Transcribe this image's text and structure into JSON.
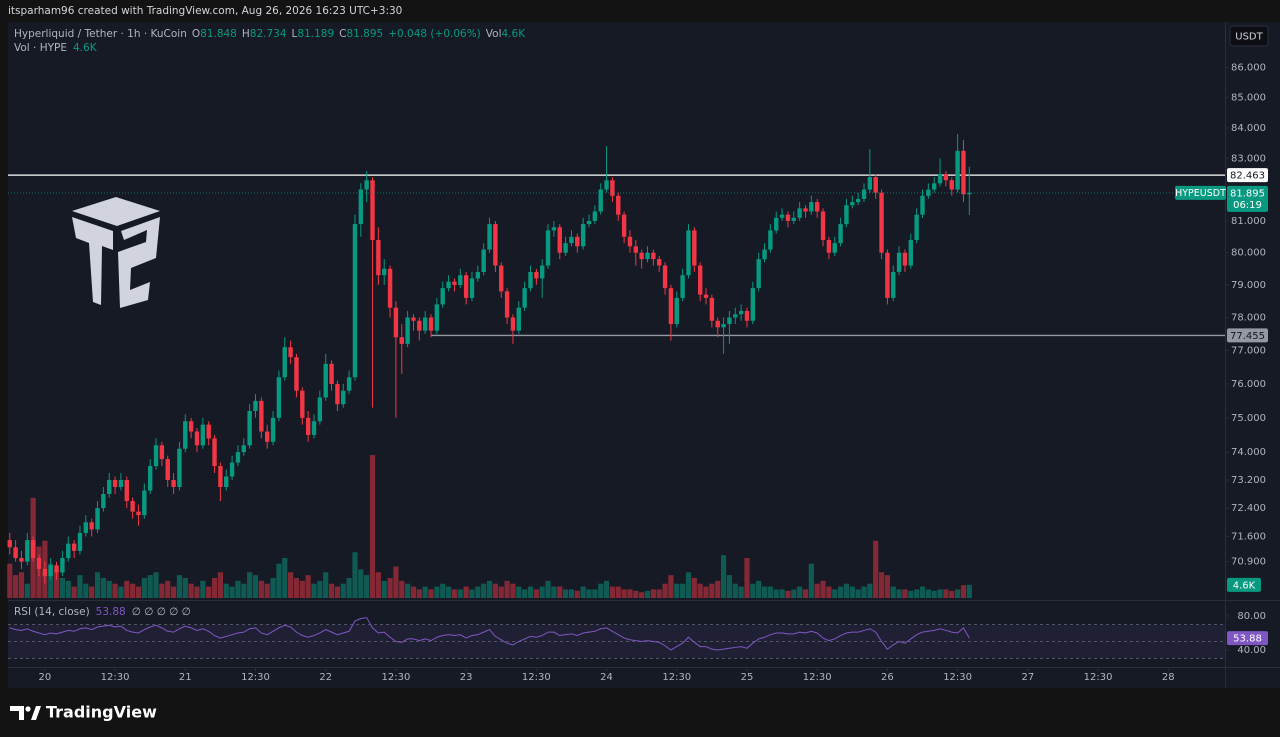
{
  "header": {
    "credit": "itsparham96 created with TradingView.com, Aug 26, 2026 16:23 UTC+3:30"
  },
  "chart_data": {
    "type": "candlestick",
    "title": "Hyperliquid / Tether · 1h · KuCoin",
    "legend_fields": [
      "O",
      "H",
      "L",
      "C"
    ],
    "change": "+0.048 (+0.06%)",
    "volume_prefix": "Vol",
    "volume_title": "Vol · HYPE",
    "currency": "USDT",
    "ylog": true,
    "grid": false,
    "up_color": "#089981",
    "down_color": "#f23645",
    "ylim": [
      69.9,
      87.55
    ],
    "yticks": [
      {
        "value": 86,
        "label": "86.000"
      },
      {
        "value": 85,
        "label": "85.000"
      },
      {
        "value": 84,
        "label": "84.000"
      },
      {
        "value": 83,
        "label": "83.000"
      },
      {
        "value": 81,
        "label": "81.000"
      },
      {
        "value": 80,
        "label": "80.000"
      },
      {
        "value": 79,
        "label": "79.000"
      },
      {
        "value": 78,
        "label": "78.000"
      },
      {
        "value": 77,
        "label": "77.000"
      },
      {
        "value": 76,
        "label": "76.000"
      },
      {
        "value": 75,
        "label": "75.000"
      },
      {
        "value": 74,
        "label": "74.000"
      },
      {
        "value": 73.2,
        "label": "73.200"
      },
      {
        "value": 72.4,
        "label": "72.400"
      },
      {
        "value": 71.6,
        "label": "71.600"
      },
      {
        "value": 70.9,
        "label": "70.900"
      }
    ],
    "xlim": [
      -0.3,
      207.7
    ],
    "xticks": [
      {
        "value": 6,
        "label": "20"
      },
      {
        "value": 18,
        "label": "12:30"
      },
      {
        "value": 30,
        "label": "21"
      },
      {
        "value": 42,
        "label": "12:30"
      },
      {
        "value": 54,
        "label": "22"
      },
      {
        "value": 66,
        "label": "12:30"
      },
      {
        "value": 78,
        "label": "23"
      },
      {
        "value": 90,
        "label": "12:30"
      },
      {
        "value": 102,
        "label": "24"
      },
      {
        "value": 114,
        "label": "12:30"
      },
      {
        "value": 126,
        "label": "25"
      },
      {
        "value": 138,
        "label": "12:30"
      },
      {
        "value": 150,
        "label": "26"
      },
      {
        "value": 162,
        "label": "12:30"
      },
      {
        "value": 174,
        "label": "27"
      },
      {
        "value": 186,
        "label": "12:30"
      },
      {
        "value": 198,
        "label": "28"
      }
    ],
    "ohlc": [
      [
        71.5,
        71.7,
        71.1,
        71.3
      ],
      [
        71.3,
        71.5,
        70.9,
        71.0
      ],
      [
        71.0,
        71.2,
        70.7,
        70.9
      ],
      [
        70.9,
        71.7,
        70.8,
        71.5
      ],
      [
        71.5,
        71.6,
        70.9,
        71.0
      ],
      [
        71.0,
        71.1,
        70.5,
        70.7
      ],
      [
        70.7,
        70.9,
        70.3,
        70.5
      ],
      [
        70.5,
        71.0,
        70.4,
        70.8
      ],
      [
        70.8,
        70.9,
        70.4,
        70.6
      ],
      [
        70.6,
        71.2,
        70.5,
        71.0
      ],
      [
        71.0,
        71.6,
        70.9,
        71.4
      ],
      [
        71.4,
        71.5,
        71.0,
        71.2
      ],
      [
        71.2,
        71.9,
        71.1,
        71.7
      ],
      [
        71.7,
        72.2,
        71.6,
        72.0
      ],
      [
        72.0,
        72.1,
        71.6,
        71.8
      ],
      [
        71.8,
        72.6,
        71.7,
        72.4
      ],
      [
        72.4,
        73.0,
        72.3,
        72.8
      ],
      [
        72.8,
        73.4,
        72.7,
        73.2
      ],
      [
        73.2,
        73.3,
        72.8,
        73.0
      ],
      [
        73.0,
        73.4,
        72.9,
        73.2
      ],
      [
        73.2,
        73.3,
        72.4,
        72.6
      ],
      [
        72.6,
        72.7,
        72.1,
        72.3
      ],
      [
        72.3,
        72.5,
        71.9,
        72.2
      ],
      [
        72.2,
        73.1,
        72.1,
        72.9
      ],
      [
        72.9,
        73.8,
        72.8,
        73.6
      ],
      [
        73.6,
        74.4,
        73.5,
        74.2
      ],
      [
        74.2,
        74.3,
        73.6,
        73.8
      ],
      [
        73.8,
        73.9,
        73.0,
        73.2
      ],
      [
        73.2,
        73.4,
        72.8,
        73.0
      ],
      [
        73.0,
        74.3,
        72.9,
        74.1
      ],
      [
        74.1,
        75.1,
        74.0,
        74.9
      ],
      [
        74.9,
        75.0,
        74.4,
        74.6
      ],
      [
        74.6,
        74.7,
        74.0,
        74.2
      ],
      [
        74.2,
        75.0,
        74.1,
        74.8
      ],
      [
        74.8,
        74.9,
        74.2,
        74.4
      ],
      [
        74.4,
        74.5,
        73.4,
        73.6
      ],
      [
        73.6,
        73.7,
        72.6,
        73.0
      ],
      [
        73.0,
        73.5,
        72.9,
        73.3
      ],
      [
        73.3,
        73.9,
        73.2,
        73.7
      ],
      [
        73.7,
        74.2,
        73.6,
        74.0
      ],
      [
        74.0,
        74.4,
        73.9,
        74.2
      ],
      [
        74.2,
        75.4,
        74.1,
        75.2
      ],
      [
        75.2,
        75.7,
        75.0,
        75.5
      ],
      [
        75.5,
        75.6,
        74.4,
        74.6
      ],
      [
        74.6,
        74.8,
        74.1,
        74.3
      ],
      [
        74.3,
        75.2,
        74.2,
        75.0
      ],
      [
        75.0,
        76.4,
        74.9,
        76.2
      ],
      [
        76.2,
        77.4,
        76.1,
        77.1
      ],
      [
        77.1,
        77.3,
        76.6,
        76.8
      ],
      [
        76.8,
        76.9,
        75.6,
        75.8
      ],
      [
        75.8,
        75.9,
        74.8,
        75.0
      ],
      [
        75.0,
        75.2,
        74.3,
        74.5
      ],
      [
        74.5,
        75.1,
        74.4,
        74.9
      ],
      [
        74.9,
        75.8,
        74.8,
        75.6
      ],
      [
        75.6,
        76.9,
        75.5,
        76.6
      ],
      [
        76.6,
        76.7,
        75.8,
        76.0
      ],
      [
        76.0,
        76.1,
        75.2,
        75.4
      ],
      [
        75.4,
        76.0,
        75.3,
        75.8
      ],
      [
        75.8,
        76.4,
        75.7,
        76.2
      ],
      [
        76.2,
        81.2,
        76.1,
        80.9
      ],
      [
        80.9,
        82.2,
        80.5,
        82.0
      ],
      [
        82.0,
        82.6,
        81.6,
        82.3
      ],
      [
        82.3,
        82.4,
        75.3,
        80.4
      ],
      [
        80.4,
        80.8,
        79.0,
        79.3
      ],
      [
        79.3,
        79.8,
        79.0,
        79.5
      ],
      [
        79.5,
        79.6,
        78.0,
        78.3
      ],
      [
        78.3,
        78.5,
        75.0,
        77.4
      ],
      [
        77.4,
        77.8,
        76.3,
        77.2
      ],
      [
        77.2,
        78.2,
        77.1,
        78.0
      ],
      [
        78.0,
        78.1,
        77.6,
        77.9
      ],
      [
        77.9,
        78.0,
        77.3,
        77.6
      ],
      [
        77.6,
        78.2,
        77.5,
        78.0
      ],
      [
        78.0,
        78.1,
        77.4,
        77.6
      ],
      [
        77.6,
        78.6,
        77.5,
        78.4
      ],
      [
        78.4,
        79.1,
        78.3,
        78.9
      ],
      [
        78.9,
        79.3,
        78.8,
        79.1
      ],
      [
        79.1,
        79.2,
        78.8,
        79.0
      ],
      [
        79.0,
        79.5,
        78.9,
        79.3
      ],
      [
        79.3,
        79.4,
        78.4,
        78.6
      ],
      [
        78.6,
        79.4,
        78.5,
        79.2
      ],
      [
        79.2,
        79.6,
        79.1,
        79.4
      ],
      [
        79.4,
        80.3,
        79.3,
        80.1
      ],
      [
        80.1,
        81.1,
        80.0,
        80.9
      ],
      [
        80.9,
        81.0,
        79.4,
        79.6
      ],
      [
        79.6,
        79.7,
        78.6,
        78.8
      ],
      [
        78.8,
        78.9,
        77.8,
        78.0
      ],
      [
        78.0,
        78.1,
        77.2,
        77.6
      ],
      [
        77.6,
        78.5,
        77.5,
        78.3
      ],
      [
        78.3,
        79.1,
        78.2,
        78.9
      ],
      [
        78.9,
        79.6,
        78.8,
        79.4
      ],
      [
        79.4,
        79.5,
        79.0,
        79.2
      ],
      [
        79.2,
        79.8,
        78.6,
        79.6
      ],
      [
        79.6,
        80.9,
        79.5,
        80.7
      ],
      [
        80.7,
        81.0,
        80.5,
        80.8
      ],
      [
        80.8,
        80.9,
        79.8,
        80.0
      ],
      [
        80.0,
        80.5,
        79.9,
        80.3
      ],
      [
        80.3,
        80.7,
        80.2,
        80.5
      ],
      [
        80.5,
        80.6,
        80.0,
        80.2
      ],
      [
        80.2,
        81.1,
        80.1,
        80.9
      ],
      [
        80.9,
        81.2,
        80.8,
        81.0
      ],
      [
        81.0,
        81.5,
        80.9,
        81.3
      ],
      [
        81.3,
        82.2,
        81.2,
        82.0
      ],
      [
        82.0,
        83.4,
        81.9,
        82.3
      ],
      [
        82.3,
        82.4,
        81.6,
        81.8
      ],
      [
        81.8,
        81.9,
        81.0,
        81.2
      ],
      [
        81.2,
        81.3,
        80.3,
        80.5
      ],
      [
        80.5,
        80.7,
        80.0,
        80.2
      ],
      [
        80.2,
        80.4,
        79.6,
        80.0
      ],
      [
        80.0,
        80.1,
        79.5,
        79.8
      ],
      [
        79.8,
        80.2,
        79.7,
        80.0
      ],
      [
        80.0,
        80.1,
        79.6,
        79.8
      ],
      [
        79.8,
        79.9,
        79.4,
        79.6
      ],
      [
        79.6,
        79.7,
        78.7,
        78.9
      ],
      [
        78.9,
        79.0,
        77.3,
        77.8
      ],
      [
        77.8,
        78.8,
        77.7,
        78.6
      ],
      [
        78.6,
        79.5,
        78.5,
        79.3
      ],
      [
        79.3,
        80.9,
        79.2,
        80.7
      ],
      [
        80.7,
        80.8,
        79.4,
        79.6
      ],
      [
        79.6,
        79.7,
        78.5,
        78.7
      ],
      [
        78.7,
        78.9,
        78.4,
        78.6
      ],
      [
        78.6,
        78.7,
        77.7,
        77.9
      ],
      [
        77.9,
        78.0,
        77.4,
        77.7
      ],
      [
        77.7,
        78.0,
        76.9,
        77.8
      ],
      [
        77.8,
        78.2,
        77.2,
        78.0
      ],
      [
        78.0,
        78.3,
        77.8,
        78.1
      ],
      [
        78.1,
        78.4,
        77.9,
        78.2
      ],
      [
        78.2,
        78.3,
        77.7,
        77.9
      ],
      [
        77.9,
        79.1,
        77.8,
        78.9
      ],
      [
        78.9,
        80.0,
        78.8,
        79.8
      ],
      [
        79.8,
        80.3,
        79.7,
        80.1
      ],
      [
        80.1,
        80.9,
        80.0,
        80.7
      ],
      [
        80.7,
        81.3,
        80.6,
        81.1
      ],
      [
        81.1,
        81.4,
        81.0,
        81.2
      ],
      [
        81.2,
        81.3,
        80.8,
        81.0
      ],
      [
        81.0,
        81.3,
        80.9,
        81.1
      ],
      [
        81.1,
        81.6,
        81.0,
        81.4
      ],
      [
        81.4,
        81.5,
        81.1,
        81.3
      ],
      [
        81.3,
        81.8,
        81.2,
        81.6
      ],
      [
        81.6,
        81.7,
        81.1,
        81.3
      ],
      [
        81.3,
        81.4,
        80.2,
        80.4
      ],
      [
        80.4,
        80.5,
        79.8,
        80.0
      ],
      [
        80.0,
        80.5,
        79.9,
        80.3
      ],
      [
        80.3,
        81.1,
        80.2,
        80.9
      ],
      [
        80.9,
        81.7,
        80.8,
        81.5
      ],
      [
        81.5,
        81.8,
        81.4,
        81.6
      ],
      [
        81.6,
        81.9,
        81.5,
        81.7
      ],
      [
        81.7,
        82.2,
        81.6,
        82.0
      ],
      [
        82.0,
        83.3,
        81.9,
        82.4
      ],
      [
        82.4,
        82.5,
        81.7,
        81.9
      ],
      [
        81.9,
        82.0,
        79.8,
        80.0
      ],
      [
        80.0,
        80.1,
        78.4,
        78.6
      ],
      [
        78.6,
        79.6,
        78.5,
        79.4
      ],
      [
        79.4,
        80.2,
        79.3,
        80.0
      ],
      [
        80.0,
        80.1,
        79.4,
        79.6
      ],
      [
        79.6,
        80.6,
        79.5,
        80.4
      ],
      [
        80.4,
        81.4,
        80.3,
        81.2
      ],
      [
        81.2,
        82.0,
        81.1,
        81.8
      ],
      [
        81.8,
        82.2,
        81.7,
        82.0
      ],
      [
        82.0,
        82.4,
        81.9,
        82.2
      ],
      [
        82.2,
        83.0,
        82.1,
        82.5
      ],
      [
        82.5,
        82.6,
        82.1,
        82.3
      ],
      [
        82.3,
        82.4,
        81.8,
        82.0
      ],
      [
        82.0,
        83.8,
        81.9,
        83.25
      ],
      [
        83.25,
        83.6,
        81.6,
        81.848
      ],
      [
        81.848,
        82.734,
        81.189,
        81.895
      ]
    ],
    "volumes": [
      12000,
      8000,
      9000,
      5000,
      35000,
      18000,
      20000,
      12000,
      10000,
      7000,
      6000,
      4000,
      8000,
      5000,
      4000,
      9000,
      7000,
      6000,
      5000,
      4000,
      6000,
      5000,
      4000,
      7000,
      8000,
      9000,
      5000,
      6000,
      4000,
      8000,
      7000,
      5000,
      4000,
      6000,
      4000,
      7000,
      9000,
      5000,
      4000,
      6000,
      5000,
      9000,
      8000,
      6000,
      5000,
      7000,
      12000,
      14000,
      9000,
      7000,
      6000,
      8000,
      5000,
      6000,
      9000,
      5000,
      4000,
      5000,
      7000,
      16000,
      10000,
      8000,
      50000,
      9000,
      6000,
      7000,
      11000,
      6000,
      5000,
      4000,
      3000,
      4000,
      3000,
      4000,
      5000,
      4000,
      3000,
      3000,
      4000,
      3000,
      4000,
      5000,
      6000,
      5000,
      4000,
      6000,
      5000,
      4000,
      3000,
      4000,
      3000,
      4000,
      6000,
      4000,
      4000,
      3000,
      3000,
      2500,
      4000,
      3000,
      3000,
      5000,
      6000,
      4000,
      4000,
      3000,
      3000,
      2500,
      2000,
      2500,
      3000,
      3000,
      5000,
      8000,
      5000,
      5000,
      9000,
      7000,
      5000,
      4000,
      5000,
      6000,
      15000,
      8000,
      5000,
      4000,
      14000,
      5000,
      6000,
      4000,
      4000,
      3000,
      3000,
      2500,
      3000,
      4000,
      3000,
      12000,
      5000,
      6000,
      4000,
      3000,
      4000,
      5000,
      4000,
      3000,
      4000,
      5000,
      20000,
      9000,
      8000,
      4000,
      3000,
      3000,
      2500,
      3000,
      4000,
      3000,
      2500,
      3000,
      3000,
      2500,
      3000,
      4500,
      4600
    ],
    "volume_label": {
      "value": 4600,
      "label": "4.6K"
    },
    "hlines": [
      {
        "value": 82.463,
        "label": "82.463",
        "color": "#ffffff",
        "from": -0.3
      },
      {
        "value": 77.455,
        "label": "77.455",
        "color": "#9598a1",
        "from": 72
      }
    ],
    "last_price": {
      "symbol": "HYPEUSDT",
      "countdown": "06:19"
    },
    "rsi": {
      "title": "RSI (14, close)",
      "extras": "∅ ∅ ∅ ∅ ∅",
      "color": "#7e57c2",
      "ylim": [
        20,
        97.6
      ],
      "yticks": [
        {
          "value": 80,
          "label": "80.00"
        },
        {
          "value": 40,
          "label": "40.00"
        }
      ],
      "levels": [
        70,
        50,
        30
      ],
      "values": [
        66,
        64,
        63,
        65,
        62,
        60,
        58,
        60,
        59,
        61,
        63,
        62,
        65,
        66,
        64,
        67,
        68,
        69,
        67,
        68,
        63,
        61,
        60,
        64,
        67,
        69,
        66,
        62,
        61,
        65,
        68,
        66,
        63,
        65,
        62,
        57,
        54,
        56,
        58,
        60,
        61,
        65,
        66,
        60,
        58,
        62,
        66,
        69,
        67,
        61,
        57,
        55,
        57,
        60,
        64,
        61,
        58,
        60,
        62,
        74,
        77,
        78,
        66,
        60,
        61,
        55,
        50,
        49,
        53,
        53,
        51,
        53,
        51,
        55,
        57,
        58,
        57,
        58,
        54,
        57,
        58,
        61,
        64,
        56,
        52,
        48,
        46,
        50,
        53,
        56,
        55,
        57,
        61,
        61,
        57,
        58,
        59,
        57,
        60,
        61,
        62,
        65,
        66,
        62,
        58,
        54,
        52,
        51,
        50,
        51,
        50,
        49,
        45,
        40,
        44,
        48,
        55,
        49,
        44,
        44,
        41,
        40,
        41,
        42,
        43,
        44,
        42,
        48,
        53,
        55,
        58,
        60,
        60,
        59,
        59,
        61,
        60,
        62,
        60,
        54,
        51,
        53,
        57,
        60,
        61,
        61,
        63,
        65,
        61,
        50,
        41,
        46,
        50,
        48,
        53,
        58,
        61,
        62,
        63,
        65,
        63,
        61,
        60,
        66,
        53.88
      ]
    }
  },
  "footer": {
    "brand": "TradingView"
  }
}
